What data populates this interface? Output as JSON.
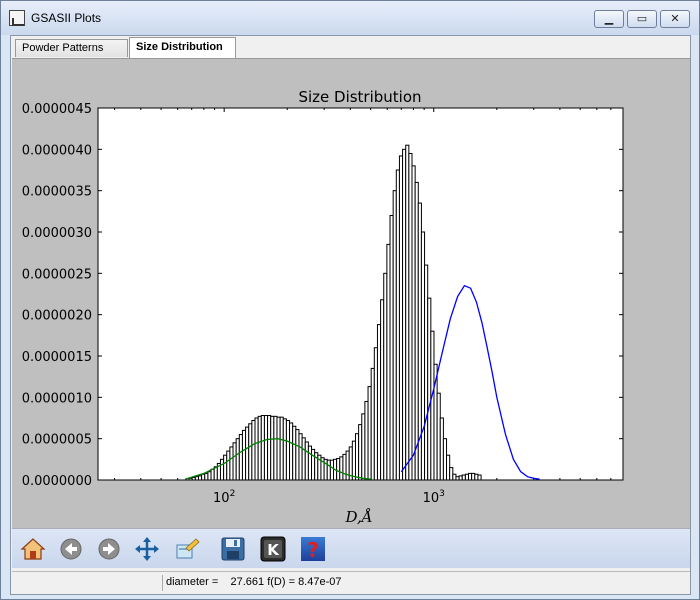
{
  "window": {
    "title": "GSASII Plots"
  },
  "tabs": [
    {
      "label": "Powder Patterns"
    },
    {
      "label": "Size Distribution"
    }
  ],
  "status": {
    "text": "diameter =    27.661 f(D) = 8.47e-07"
  },
  "toolbar": {
    "buttons": [
      "home-icon",
      "back-icon",
      "forward-icon",
      "pan-icon",
      "configure-icon",
      "save-icon",
      "k-icon",
      "help-icon"
    ]
  },
  "chart_data": {
    "type": "bar",
    "title": "Size Distribution",
    "xlabel": "D,Å",
    "ylabel": "",
    "xscale": "log",
    "xlim": [
      25,
      8000
    ],
    "ylim": [
      0,
      4.5e-06
    ],
    "yticks": [
      "0.0000000",
      "0.0000005",
      "0.0000010",
      "0.0000015",
      "0.0000020",
      "0.0000025",
      "0.0000030",
      "0.0000035",
      "0.0000040",
      "0.0000045"
    ],
    "xtick_labels": [
      {
        "base": "10",
        "exp": "2",
        "value": 100
      },
      {
        "base": "10",
        "exp": "3",
        "value": 1000
      }
    ],
    "bins": {
      "start": 68,
      "ratio": 1.0351,
      "values": [
        2e-08,
        3e-08,
        4e-08,
        5e-08,
        7e-08,
        8e-08,
        1e-07,
        1.3e-07,
        1.6e-07,
        2e-07,
        2.5e-07,
        3e-07,
        3.5e-07,
        4e-07,
        4.5e-07,
        5e-07,
        5.5e-07,
        6e-07,
        6.4e-07,
        6.8e-07,
        7.2e-07,
        7.5e-07,
        7.7e-07,
        7.8e-07,
        7.8e-07,
        7.8e-07,
        7.7e-07,
        7.7e-07,
        7.6e-07,
        7.6e-07,
        7.4e-07,
        7.2e-07,
        6.9e-07,
        6.5e-07,
        6.1e-07,
        5.6e-07,
        5.1e-07,
        4.6e-07,
        4.1e-07,
        3.7e-07,
        3.3e-07,
        3e-07,
        2.7e-07,
        2.5e-07,
        2.4e-07,
        2.4e-07,
        2.5e-07,
        2.6e-07,
        2.8e-07,
        3.1e-07,
        3.5e-07,
        4e-07,
        4.7e-07,
        5.6e-07,
        6.7e-07,
        8e-07,
        9.5e-07,
        1.13e-06,
        1.35e-06,
        1.6e-06,
        1.88e-06,
        2.18e-06,
        2.5e-06,
        2.85e-06,
        3.2e-06,
        3.5e-06,
        3.75e-06,
        3.92e-06,
        4e-06,
        4.05e-06,
        3.95e-06,
        3.8e-06,
        3.6e-06,
        3.35e-06,
        3e-06,
        2.6e-06,
        2.2e-06,
        1.8e-06,
        1.4e-06,
        1.05e-06,
        7.5e-07,
        5e-07,
        3e-07,
        1.5e-07,
        7e-08,
        4e-08,
        5e-08,
        6e-08,
        7e-08,
        8e-08,
        8e-08,
        7e-08,
        6e-08
      ]
    },
    "series": [
      {
        "color": "#008000",
        "x": [
          65,
          80,
          100,
          120,
          140,
          160,
          180,
          200,
          230,
          260,
          300,
          340,
          380,
          420,
          460,
          500
        ],
        "y": [
          1e-08,
          8e-08,
          2e-07,
          3.4e-07,
          4.4e-07,
          4.9e-07,
          5e-07,
          4.7e-07,
          4e-07,
          3.1e-07,
          2.1e-07,
          1.2e-07,
          7e-08,
          4e-08,
          2e-08,
          1e-08
        ]
      },
      {
        "color": "#0000ff",
        "x": [
          700,
          800,
          900,
          1000,
          1100,
          1200,
          1300,
          1400,
          1500,
          1600,
          1700,
          1800,
          1900,
          2000,
          2200,
          2400,
          2600,
          2800,
          3000,
          3200
        ],
        "y": [
          1e-07,
          3e-07,
          6.5e-07,
          1.1e-06,
          1.55e-06,
          1.95e-06,
          2.22e-06,
          2.35e-06,
          2.32e-06,
          2.15e-06,
          1.9e-06,
          1.6e-06,
          1.3e-06,
          1e-06,
          5.5e-07,
          2.5e-07,
          1e-07,
          4e-08,
          2e-08,
          1e-08
        ]
      }
    ]
  }
}
